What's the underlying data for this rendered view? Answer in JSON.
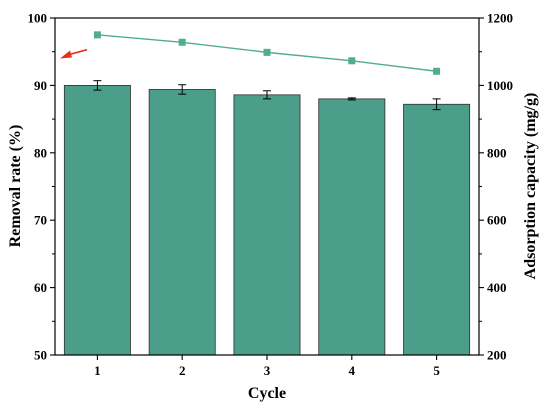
{
  "chart_data": {
    "type": "bar",
    "title": "",
    "xlabel": "Cycle",
    "ylabel_left": "Removal rate (%)",
    "ylabel_right": "Adsorption capacity (mg/g)",
    "categories": [
      "1",
      "2",
      "3",
      "4",
      "5"
    ],
    "ylim_left": [
      50,
      100
    ],
    "ylim_right": [
      200,
      1200
    ],
    "yticks_left": [
      "50",
      "60",
      "70",
      "80",
      "90",
      "100"
    ],
    "yticks_right": [
      "200",
      "400",
      "600",
      "800",
      "1000",
      "1200"
    ],
    "series": [
      {
        "type": "bar",
        "axis": "left",
        "values": [
          90.0,
          89.4,
          88.6,
          88.0,
          87.2
        ],
        "errors": [
          0.7,
          0.7,
          0.6,
          0.15,
          0.8
        ],
        "color": "#4a9e8a"
      },
      {
        "type": "line",
        "axis": "right",
        "values": [
          1150,
          1128,
          1098,
          1073,
          1042
        ],
        "color": "#4fae8e"
      }
    ],
    "annotations": [
      {
        "type": "arrow",
        "color": "#e8301c",
        "points_to": "left-axis"
      }
    ],
    "grid": false,
    "legend": "none"
  }
}
